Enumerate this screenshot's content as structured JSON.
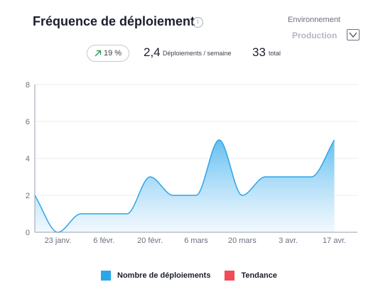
{
  "header": {
    "title": "Fréquence de déploiement",
    "info_icon": "info-icon"
  },
  "environment": {
    "label": "Environnement",
    "selected": "Production"
  },
  "stats": {
    "change": "19 %",
    "frequency_value": "2,4",
    "frequency_label": "Déploiements / semaine",
    "total_value": "33",
    "total_label": "total"
  },
  "colors": {
    "series": "#2ba6e8",
    "trend": "#f04b57",
    "up_arrow": "#2e9e57"
  },
  "chart_data": {
    "type": "area",
    "ylim": [
      0,
      8
    ],
    "y_ticks": [
      "0",
      "2",
      "4",
      "6",
      "8"
    ],
    "x_tick_labels": [
      "23 janv.",
      "6 févr.",
      "20 févr.",
      "6 mars",
      "20 mars",
      "3 avr.",
      "17 avr."
    ],
    "x_dates": [
      "2024-01-16",
      "2024-01-23",
      "2024-01-30",
      "2024-02-06",
      "2024-02-13",
      "2024-02-20",
      "2024-02-27",
      "2024-03-05",
      "2024-03-12",
      "2024-03-19",
      "2024-03-26",
      "2024-04-02",
      "2024-04-09",
      "2024-04-16",
      "2024-04-23"
    ],
    "series": [
      {
        "name": "Nombre de déploiements",
        "values": [
          2,
          0,
          1,
          1,
          1,
          3,
          2,
          2,
          5,
          2,
          3,
          3,
          3,
          5
        ]
      },
      {
        "name": "Tendance",
        "values": []
      }
    ],
    "grid": true
  }
}
